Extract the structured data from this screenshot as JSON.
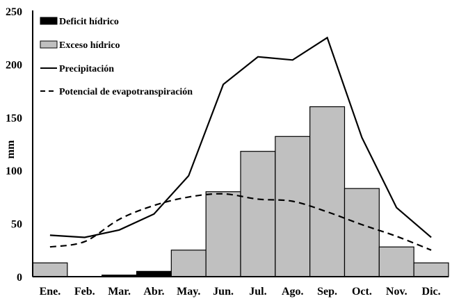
{
  "chart_data": {
    "type": "bar+line",
    "title": "",
    "xlabel": "",
    "ylabel": "mm",
    "ylim": [
      0,
      250
    ],
    "yticks": [
      0,
      50,
      100,
      150,
      200,
      250
    ],
    "grid": false,
    "legend_position": "top-left",
    "categories": [
      "Ene.",
      "Feb.",
      "Mar.",
      "Abr.",
      "May.",
      "Jun.",
      "Jul.",
      "Ago.",
      "Sep.",
      "Oct.",
      "Nov.",
      "Dic."
    ],
    "series": [
      {
        "name": "Deficit hídrico",
        "type": "bar",
        "color": "#000000",
        "values": [
          0,
          0,
          1.5,
          5,
          0,
          0,
          0,
          0,
          0,
          0,
          0,
          0
        ]
      },
      {
        "name": "Exceso hídrico",
        "type": "bar",
        "color": "#c0c0c0",
        "values": [
          13,
          0,
          0,
          0,
          25,
          80,
          118,
          132,
          160,
          83,
          28,
          13
        ]
      },
      {
        "name": "Precipitación",
        "type": "line",
        "style": "solid",
        "color": "#000000",
        "values": [
          39,
          37,
          44,
          59,
          95,
          181,
          207,
          204,
          225,
          131,
          65,
          37
        ]
      },
      {
        "name": "Potencial de evapotranspiración",
        "type": "line",
        "style": "dashed",
        "color": "#000000",
        "values": [
          28,
          33,
          54,
          67,
          75,
          78,
          73,
          71,
          61,
          49,
          38,
          25
        ]
      }
    ]
  },
  "legend": {
    "items": [
      {
        "label": "Deficit hídrico",
        "kind": "bar-black"
      },
      {
        "label": "Exceso hídrico",
        "kind": "bar-gray"
      },
      {
        "label": "Precipitación",
        "kind": "solid-line"
      },
      {
        "label": "Potencial de evapotranspiración",
        "kind": "dashed-line"
      }
    ]
  },
  "axis": {
    "ylabel": "mm",
    "yticks": [
      "0",
      "50",
      "100",
      "150",
      "200",
      "250"
    ]
  }
}
